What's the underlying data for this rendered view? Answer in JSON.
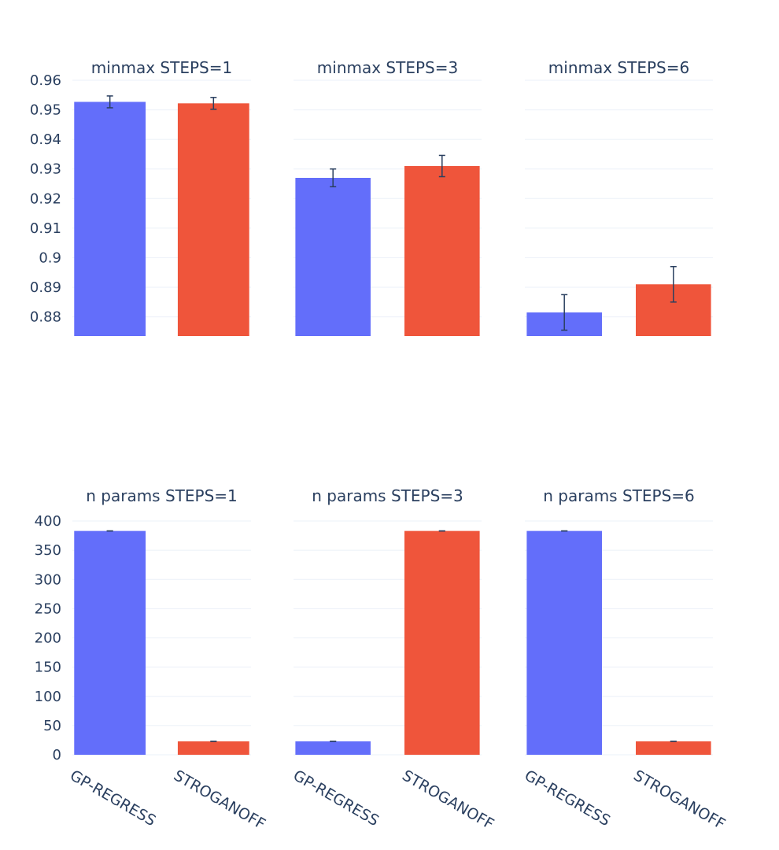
{
  "chart_data": {
    "type": "bar",
    "categories": [
      "GP-REGRESS",
      "STROGANOFF"
    ],
    "colors": {
      "GP-REGRESS": "#636efa",
      "STROGANOFF": "#ef553b",
      "error_bar": "#2a3f5f",
      "grid": "#ebf0f8",
      "text": "#2a3f5f"
    },
    "grid": true,
    "legend": "none",
    "rows": [
      {
        "metric": "minmax",
        "ylim": [
          0.8735,
          0.96
        ],
        "yticks": [
          0.88,
          0.89,
          0.9,
          0.91,
          0.92,
          0.93,
          0.94,
          0.95,
          0.96
        ],
        "ytick_labels": [
          "0.88",
          "0.89",
          "0.9",
          "0.91",
          "0.92",
          "0.93",
          "0.94",
          "0.95",
          "0.96"
        ],
        "panels": [
          {
            "title": "minmax STEPS=1",
            "values": [
              0.9527,
              0.9522
            ],
            "errors": [
              0.002,
              0.002
            ]
          },
          {
            "title": "minmax STEPS=3",
            "values": [
              0.927,
              0.931
            ],
            "errors": [
              0.003,
              0.0036
            ]
          },
          {
            "title": "minmax STEPS=6",
            "values": [
              0.8815,
              0.891
            ],
            "errors": [
              0.006,
              0.006
            ]
          }
        ]
      },
      {
        "metric": "n params",
        "ylim": [
          0,
          400
        ],
        "yticks": [
          0,
          50,
          100,
          150,
          200,
          250,
          300,
          350,
          400
        ],
        "ytick_labels": [
          "0",
          "50",
          "100",
          "150",
          "200",
          "250",
          "300",
          "350",
          "400"
        ],
        "panels": [
          {
            "title": "n params STEPS=1",
            "values": [
              383,
              23
            ],
            "errors": [
              0,
              0
            ]
          },
          {
            "title": "n params STEPS=3",
            "values": [
              23,
              383
            ],
            "errors": [
              0,
              0
            ]
          },
          {
            "title": "n params STEPS=6",
            "values": [
              383,
              23
            ],
            "errors": [
              0,
              0
            ]
          }
        ]
      }
    ]
  }
}
